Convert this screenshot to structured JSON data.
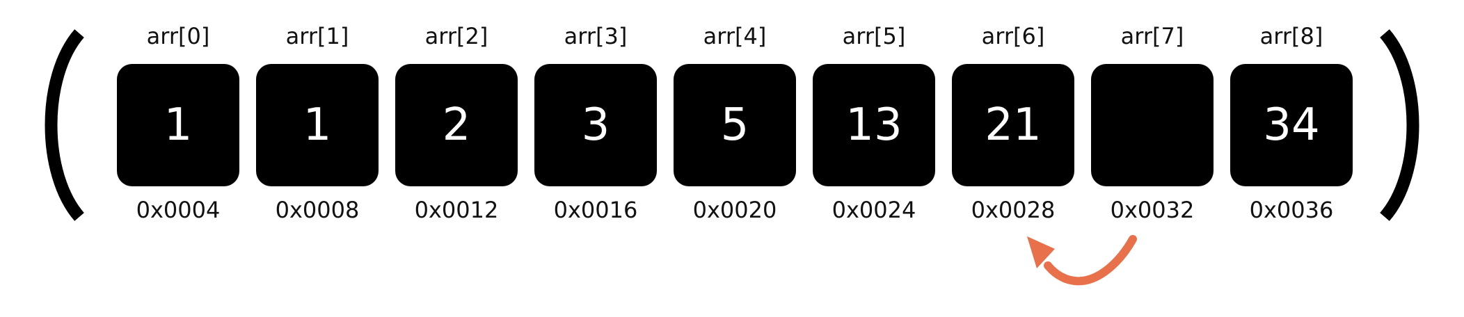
{
  "colors": {
    "box": "#000000",
    "box_text": "#ffffff",
    "label_text": "#111111",
    "arrow": "#E8704A"
  },
  "icons": {
    "left_bracket": "left-parenthesis-icon",
    "right_bracket": "right-parenthesis-icon",
    "arrow": "curved-arrow-icon"
  },
  "cells": [
    {
      "index": "arr[0]",
      "value": "1",
      "address": "0x0004"
    },
    {
      "index": "arr[1]",
      "value": "1",
      "address": "0x0008"
    },
    {
      "index": "arr[2]",
      "value": "2",
      "address": "0x0012"
    },
    {
      "index": "arr[3]",
      "value": "3",
      "address": "0x0016"
    },
    {
      "index": "arr[4]",
      "value": "5",
      "address": "0x0020"
    },
    {
      "index": "arr[5]",
      "value": "13",
      "address": "0x0024"
    },
    {
      "index": "arr[6]",
      "value": "21",
      "address": "0x0028"
    },
    {
      "index": "arr[7]",
      "value": "",
      "address": "0x0032"
    },
    {
      "index": "arr[8]",
      "value": "34",
      "address": "0x0036"
    }
  ]
}
